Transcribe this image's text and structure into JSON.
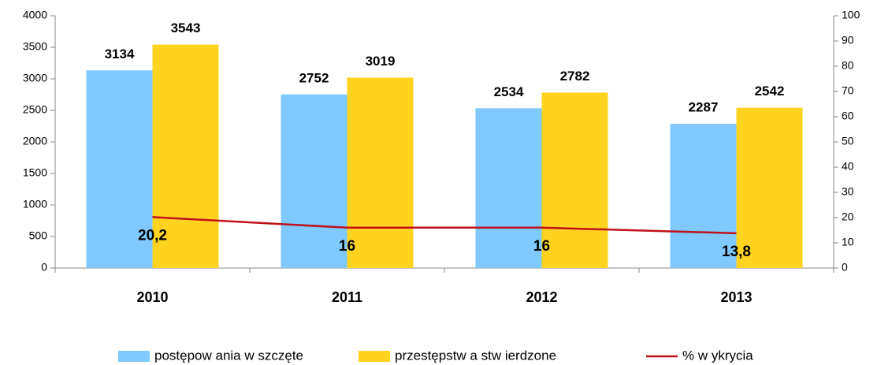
{
  "chart_data": {
    "type": "bar",
    "categories": [
      "2010",
      "2011",
      "2012",
      "2013"
    ],
    "series": [
      {
        "name": "postępow ania w szczęte",
        "color": "#7fc9ff",
        "values": [
          3134,
          2752,
          2534,
          2287
        ]
      },
      {
        "name": "przestępstw a stw ierdzone",
        "color": "#ffd320",
        "values": [
          3543,
          3019,
          2782,
          2542
        ]
      },
      {
        "name": "% w ykrycia",
        "color": "#c0101a",
        "type": "line",
        "axis": "y2",
        "values": [
          20.2,
          16,
          16,
          13.8
        ],
        "value_labels": [
          "20,2",
          "16",
          "16",
          "13,8"
        ]
      }
    ],
    "ylim": [
      0,
      4000
    ],
    "yticks": [
      0,
      500,
      1000,
      1500,
      2000,
      2500,
      3000,
      3500,
      4000
    ],
    "y2lim": [
      0,
      100
    ],
    "y2ticks": [
      0,
      10,
      20,
      30,
      40,
      50,
      60,
      70,
      80,
      90,
      100
    ],
    "grid": false,
    "legend": "bottom"
  }
}
